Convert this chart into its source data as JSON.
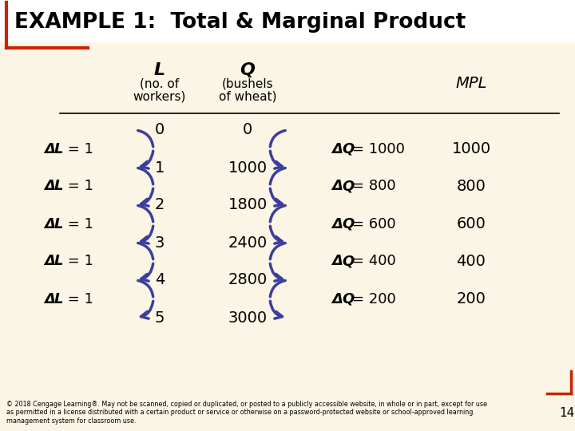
{
  "title": "EXAMPLE 1:  Total & Marginal Product",
  "background_color": "#faf5e4",
  "title_bg": "#ffffff",
  "blue_arrow_color": "#3d3d9e",
  "L_values": [
    0,
    1,
    2,
    3,
    4,
    5
  ],
  "Q_values": [
    0,
    1000,
    1800,
    2400,
    2800,
    3000
  ],
  "MPL_values": [
    1000,
    800,
    600,
    400,
    200
  ],
  "delta_Q_values": [
    "= 1000",
    "= 800",
    "= 600",
    "= 400",
    "= 200"
  ],
  "footer": "© 2018 Cengage Learning®. May not be scanned, copied or duplicated, or posted to a publicly accessible website, in whole or in part, except for use\nas permitted in a license distributed with a certain product or service or otherwise on a password-protected website or school-approved learning\nmanagement system for classroom use.",
  "page_num": "14"
}
